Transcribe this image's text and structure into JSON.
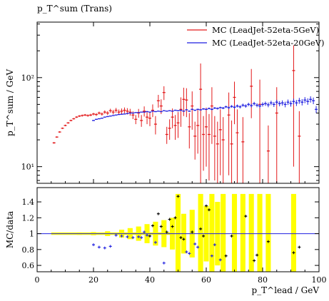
{
  "chart_data": {
    "type": "scatter",
    "title": "p_T^sum (Trans)",
    "xlabel": "p_T^lead / GeV",
    "ylabel": "p_T^sum / GeV",
    "ratio_ylabel": "MC/data",
    "main_scale": "log",
    "main_ylim": [
      6.5,
      420
    ],
    "ratio_ylim": [
      0.52,
      1.58
    ],
    "xlim": [
      0,
      100
    ],
    "x_ticks": [
      0,
      20,
      40,
      60,
      80,
      100
    ],
    "main_y_ticks": [
      {
        "value": 10,
        "label": "10¹"
      },
      {
        "value": 100,
        "label": "10²"
      }
    ],
    "ratio_y_ticks": [
      0.6,
      0.8,
      1,
      1.2,
      1.4
    ],
    "series": [
      {
        "name": "MC (LeadJet-52eta-5GeV)",
        "color": "#e31a1c",
        "points": [
          {
            "x": 6,
            "y": 18.5,
            "err": 0.4
          },
          {
            "x": 7,
            "y": 21.5,
            "err": 0.4
          },
          {
            "x": 8,
            "y": 24.5,
            "err": 0.5
          },
          {
            "x": 9,
            "y": 27.0,
            "err": 0.5
          },
          {
            "x": 10,
            "y": 29.0,
            "err": 0.6
          },
          {
            "x": 11,
            "y": 31.0,
            "err": 0.6
          },
          {
            "x": 12,
            "y": 33.0,
            "err": 0.7
          },
          {
            "x": 13,
            "y": 34.5,
            "err": 0.7
          },
          {
            "x": 14,
            "y": 36.0,
            "err": 0.8
          },
          {
            "x": 15,
            "y": 37.0,
            "err": 0.9
          },
          {
            "x": 16,
            "y": 37.5,
            "err": 1.0
          },
          {
            "x": 17,
            "y": 38.0,
            "err": 1.0
          },
          {
            "x": 18,
            "y": 37.5,
            "err": 1.1
          },
          {
            "x": 19,
            "y": 38.0,
            "err": 1.2
          },
          {
            "x": 20,
            "y": 39.0,
            "err": 1.3
          },
          {
            "x": 21,
            "y": 38.5,
            "err": 1.4
          },
          {
            "x": 22,
            "y": 40.0,
            "err": 1.5
          },
          {
            "x": 23,
            "y": 39.0,
            "err": 1.6
          },
          {
            "x": 24,
            "y": 41.0,
            "err": 1.8
          },
          {
            "x": 25,
            "y": 40.0,
            "err": 2.0
          },
          {
            "x": 26,
            "y": 42.5,
            "err": 2.2
          },
          {
            "x": 27,
            "y": 41.0,
            "err": 2.4
          },
          {
            "x": 28,
            "y": 43.0,
            "err": 2.6
          },
          {
            "x": 29,
            "y": 41.0,
            "err": 2.8
          },
          {
            "x": 30,
            "y": 42.0,
            "err": 3.0
          },
          {
            "x": 31,
            "y": 43.0,
            "err": 3.2
          },
          {
            "x": 32,
            "y": 42.0,
            "err": 3.4
          },
          {
            "x": 33,
            "y": 41.0,
            "err": 3.6
          },
          {
            "x": 34,
            "y": 38.0,
            "err": 3.8
          },
          {
            "x": 35,
            "y": 34.0,
            "err": 4.0
          },
          {
            "x": 36,
            "y": 40.0,
            "err": 4.5
          },
          {
            "x": 37,
            "y": 33.0,
            "err": 5.0
          },
          {
            "x": 38,
            "y": 42.0,
            "err": 5.5
          },
          {
            "x": 39,
            "y": 36.0,
            "err": 6.0
          },
          {
            "x": 40,
            "y": 35.0,
            "err": 6.5
          },
          {
            "x": 41,
            "y": 43.0,
            "err": 7.0
          },
          {
            "x": 42,
            "y": 30.0,
            "err": 7.0
          },
          {
            "x": 43,
            "y": 55.0,
            "err": 9.0
          },
          {
            "x": 44,
            "y": 48.0,
            "err": 9.0
          },
          {
            "x": 45,
            "y": 68.0,
            "err": 12.0
          },
          {
            "x": 46,
            "y": 23.0,
            "err": 5.0
          },
          {
            "x": 47,
            "y": 27.0,
            "err": 7.0
          },
          {
            "x": 48,
            "y": 36.0,
            "err": 9.0
          },
          {
            "x": 49,
            "y": 29.0,
            "err": 9.0
          },
          {
            "x": 50,
            "y": 31.0,
            "err": 10.0
          },
          {
            "x": 51,
            "y": 44.0,
            "err": 16.0
          },
          {
            "x": 52,
            "y": 57.0,
            "err": 20.0
          },
          {
            "x": 53,
            "y": 56.0,
            "err": 20.0
          },
          {
            "x": 54,
            "y": 28.0,
            "err": 12.0
          },
          {
            "x": 55,
            "y": 48.0,
            "err": 22.0
          },
          {
            "x": 56,
            "y": 22.0,
            "err": 10.0
          },
          {
            "x": 57,
            "y": 29.0,
            "err": 15.0
          },
          {
            "x": 58,
            "y": 74.0,
            "err": 70.0
          },
          {
            "x": 59,
            "y": 23.0,
            "err": 14.0
          },
          {
            "x": 60,
            "y": 28.0,
            "err": 18.0
          },
          {
            "x": 61,
            "y": 23.0,
            "err": 16.0
          },
          {
            "x": 62,
            "y": 48.0,
            "err": 30.0
          },
          {
            "x": 63,
            "y": 22.0,
            "err": 15.0
          },
          {
            "x": 64,
            "y": 18.0,
            "err": 14.0
          },
          {
            "x": 65,
            "y": 26.0,
            "err": 18.0
          },
          {
            "x": 66,
            "y": 20.0,
            "err": 16.0
          },
          {
            "x": 68,
            "y": 38.0,
            "err": 30.0
          },
          {
            "x": 69,
            "y": 18.0,
            "err": 15.0
          },
          {
            "x": 70,
            "y": 60.0,
            "err": 30.0
          },
          {
            "x": 71,
            "y": 24.0,
            "err": 20.0
          },
          {
            "x": 73,
            "y": 19.0,
            "err": 17.0
          },
          {
            "x": 76,
            "y": 80.0,
            "err": 45.0
          },
          {
            "x": 79,
            "y": 50.0,
            "err": 45.0
          },
          {
            "x": 82,
            "y": 15.0,
            "err": 14.0
          },
          {
            "x": 85,
            "y": 40.0,
            "err": 38.0
          },
          {
            "x": 91,
            "y": 120.0,
            "err": 110.0
          },
          {
            "x": 93,
            "y": 22.0,
            "err": 20.0
          }
        ]
      },
      {
        "name": "MC (LeadJet-52eta-20GeV)",
        "color": "#1f1fe0",
        "points": [
          {
            "x": 20,
            "y": 33.0,
            "err": 0.4
          },
          {
            "x": 21,
            "y": 34.0,
            "err": 0.4
          },
          {
            "x": 22,
            "y": 34.5,
            "err": 0.4
          },
          {
            "x": 23,
            "y": 35.0,
            "err": 0.4
          },
          {
            "x": 24,
            "y": 36.0,
            "err": 0.4
          },
          {
            "x": 25,
            "y": 36.5,
            "err": 0.4
          },
          {
            "x": 26,
            "y": 37.0,
            "err": 0.4
          },
          {
            "x": 27,
            "y": 37.5,
            "err": 0.4
          },
          {
            "x": 28,
            "y": 38.0,
            "err": 0.4
          },
          {
            "x": 29,
            "y": 38.5,
            "err": 0.4
          },
          {
            "x": 30,
            "y": 38.8,
            "err": 0.4
          },
          {
            "x": 31,
            "y": 39.0,
            "err": 0.4
          },
          {
            "x": 32,
            "y": 39.5,
            "err": 0.4
          },
          {
            "x": 33,
            "y": 40.0,
            "err": 0.4
          },
          {
            "x": 34,
            "y": 40.0,
            "err": 0.4
          },
          {
            "x": 35,
            "y": 40.5,
            "err": 0.4
          },
          {
            "x": 36,
            "y": 40.5,
            "err": 0.4
          },
          {
            "x": 37,
            "y": 41.0,
            "err": 0.4
          },
          {
            "x": 38,
            "y": 41.0,
            "err": 0.4
          },
          {
            "x": 39,
            "y": 41.5,
            "err": 0.5
          },
          {
            "x": 40,
            "y": 41.0,
            "err": 0.5
          },
          {
            "x": 41,
            "y": 42.0,
            "err": 0.5
          },
          {
            "x": 42,
            "y": 41.5,
            "err": 0.5
          },
          {
            "x": 43,
            "y": 42.0,
            "err": 0.5
          },
          {
            "x": 44,
            "y": 41.5,
            "err": 0.5
          },
          {
            "x": 45,
            "y": 42.5,
            "err": 0.5
          },
          {
            "x": 46,
            "y": 42.0,
            "err": 0.5
          },
          {
            "x": 47,
            "y": 42.5,
            "err": 0.5
          },
          {
            "x": 48,
            "y": 42.0,
            "err": 0.5
          },
          {
            "x": 49,
            "y": 43.0,
            "err": 0.6
          },
          {
            "x": 50,
            "y": 42.5,
            "err": 0.6
          },
          {
            "x": 51,
            "y": 43.0,
            "err": 0.6
          },
          {
            "x": 52,
            "y": 42.0,
            "err": 0.6
          },
          {
            "x": 53,
            "y": 43.5,
            "err": 0.6
          },
          {
            "x": 54,
            "y": 42.0,
            "err": 0.7
          },
          {
            "x": 55,
            "y": 44.0,
            "err": 0.7
          },
          {
            "x": 56,
            "y": 43.0,
            "err": 0.7
          },
          {
            "x": 57,
            "y": 44.0,
            "err": 0.8
          },
          {
            "x": 58,
            "y": 43.5,
            "err": 0.8
          },
          {
            "x": 59,
            "y": 44.5,
            "err": 0.9
          },
          {
            "x": 60,
            "y": 44.0,
            "err": 0.9
          },
          {
            "x": 61,
            "y": 45.0,
            "err": 1.0
          },
          {
            "x": 62,
            "y": 44.0,
            "err": 1.0
          },
          {
            "x": 63,
            "y": 45.5,
            "err": 1.1
          },
          {
            "x": 64,
            "y": 45.0,
            "err": 1.2
          },
          {
            "x": 65,
            "y": 46.0,
            "err": 1.2
          },
          {
            "x": 66,
            "y": 45.5,
            "err": 1.3
          },
          {
            "x": 67,
            "y": 47.0,
            "err": 1.4
          },
          {
            "x": 68,
            "y": 46.0,
            "err": 1.5
          },
          {
            "x": 69,
            "y": 47.5,
            "err": 1.6
          },
          {
            "x": 70,
            "y": 46.5,
            "err": 1.7
          },
          {
            "x": 71,
            "y": 48.0,
            "err": 1.8
          },
          {
            "x": 72,
            "y": 47.0,
            "err": 1.9
          },
          {
            "x": 73,
            "y": 49.0,
            "err": 2.0
          },
          {
            "x": 74,
            "y": 48.0,
            "err": 2.1
          },
          {
            "x": 75,
            "y": 50.0,
            "err": 2.2
          },
          {
            "x": 76,
            "y": 48.5,
            "err": 2.3
          },
          {
            "x": 77,
            "y": 51.0,
            "err": 2.4
          },
          {
            "x": 78,
            "y": 49.0,
            "err": 2.5
          },
          {
            "x": 79,
            "y": 48.0,
            "err": 2.6
          },
          {
            "x": 80,
            "y": 50.0,
            "err": 2.7
          },
          {
            "x": 81,
            "y": 51.0,
            "err": 2.8
          },
          {
            "x": 82,
            "y": 49.5,
            "err": 3.0
          },
          {
            "x": 83,
            "y": 52.0,
            "err": 3.0
          },
          {
            "x": 84,
            "y": 50.0,
            "err": 3.2
          },
          {
            "x": 85,
            "y": 53.0,
            "err": 3.3
          },
          {
            "x": 86,
            "y": 51.0,
            "err": 3.4
          },
          {
            "x": 87,
            "y": 52.0,
            "err": 3.5
          },
          {
            "x": 88,
            "y": 50.0,
            "err": 3.6
          },
          {
            "x": 89,
            "y": 53.0,
            "err": 3.7
          },
          {
            "x": 90,
            "y": 51.0,
            "err": 3.8
          },
          {
            "x": 91,
            "y": 54.0,
            "err": 4.0
          },
          {
            "x": 92,
            "y": 52.0,
            "err": 4.0
          },
          {
            "x": 93,
            "y": 55.0,
            "err": 4.2
          },
          {
            "x": 94,
            "y": 53.0,
            "err": 4.3
          },
          {
            "x": 95,
            "y": 56.0,
            "err": 4.4
          },
          {
            "x": 96,
            "y": 54.0,
            "err": 4.5
          },
          {
            "x": 97,
            "y": 57.0,
            "err": 4.6
          },
          {
            "x": 98,
            "y": 55.0,
            "err": 4.7
          },
          {
            "x": 99,
            "y": 44.0,
            "err": 4.0
          }
        ]
      }
    ],
    "ratio_band": {
      "color": "#ffff00",
      "bins": [
        {
          "x": 10,
          "half_width": 0.01
        },
        {
          "x": 15,
          "half_width": 0.015
        },
        {
          "x": 20,
          "half_width": 0.02
        },
        {
          "x": 25,
          "half_width": 0.03
        },
        {
          "x": 30,
          "half_width": 0.05
        },
        {
          "x": 33,
          "half_width": 0.07
        },
        {
          "x": 36,
          "half_width": 0.09
        },
        {
          "x": 39,
          "half_width": 0.12
        },
        {
          "x": 42,
          "half_width": 0.15
        },
        {
          "x": 45,
          "half_width": 0.17
        },
        {
          "x": 48,
          "half_width": 0.2
        },
        {
          "x": 50,
          "half_width": 0.5
        },
        {
          "x": 52,
          "half_width": 0.25
        },
        {
          "x": 55,
          "half_width": 0.3
        },
        {
          "x": 58,
          "half_width": 0.5
        },
        {
          "x": 60,
          "half_width": 0.35
        },
        {
          "x": 62,
          "half_width": 0.5
        },
        {
          "x": 64,
          "half_width": 0.4
        },
        {
          "x": 66,
          "half_width": 0.5
        },
        {
          "x": 70,
          "half_width": 0.5
        },
        {
          "x": 73,
          "half_width": 0.5
        },
        {
          "x": 76,
          "half_width": 0.5
        },
        {
          "x": 79,
          "half_width": 0.5
        },
        {
          "x": 82,
          "half_width": 0.5
        },
        {
          "x": 91,
          "half_width": 0.5
        }
      ]
    },
    "ratio_points": [
      {
        "x": 20,
        "y": 0.86
      },
      {
        "x": 22,
        "y": 0.83
      },
      {
        "x": 24,
        "y": 0.82
      },
      {
        "x": 26,
        "y": 0.84
      },
      {
        "x": 28,
        "y": 0.98
      },
      {
        "x": 30,
        "y": 0.97
      },
      {
        "x": 32,
        "y": 0.96
      },
      {
        "x": 34,
        "y": 0.95
      },
      {
        "x": 36,
        "y": 0.96
      },
      {
        "x": 37,
        "y": 0.95
      },
      {
        "x": 38,
        "y": 1.02
      },
      {
        "x": 39,
        "y": 0.98
      },
      {
        "x": 40,
        "y": 0.97
      },
      {
        "x": 41,
        "y": 1.1
      },
      {
        "x": 42,
        "y": 0.89
      },
      {
        "x": 43,
        "y": 1.25
      },
      {
        "x": 44,
        "y": 1.09
      },
      {
        "x": 45,
        "y": 0.63
      },
      {
        "x": 46,
        "y": 1.02
      },
      {
        "x": 47,
        "y": 1.18
      },
      {
        "x": 48,
        "y": 1.09
      },
      {
        "x": 49,
        "y": 1.2
      },
      {
        "x": 50,
        "y": 1.47
      },
      {
        "x": 51,
        "y": 0.95
      },
      {
        "x": 52,
        "y": 0.93
      },
      {
        "x": 53,
        "y": 0.77
      },
      {
        "x": 54,
        "y": 0.75
      },
      {
        "x": 55,
        "y": 1.02
      },
      {
        "x": 56,
        "y": 0.87
      },
      {
        "x": 57,
        "y": 0.83
      },
      {
        "x": 58,
        "y": 1.06
      },
      {
        "x": 59,
        "y": 0.97
      },
      {
        "x": 60,
        "y": 1.35
      },
      {
        "x": 61,
        "y": 1.3
      },
      {
        "x": 62,
        "y": 0.72
      },
      {
        "x": 63,
        "y": 0.86
      },
      {
        "x": 65,
        "y": 0.67
      },
      {
        "x": 67,
        "y": 0.72
      },
      {
        "x": 69,
        "y": 0.97
      },
      {
        "x": 74,
        "y": 1.22
      },
      {
        "x": 77,
        "y": 0.66
      },
      {
        "x": 78,
        "y": 0.73
      },
      {
        "x": 82,
        "y": 0.9
      },
      {
        "x": 91,
        "y": 0.76
      },
      {
        "x": 93,
        "y": 0.83
      }
    ]
  }
}
